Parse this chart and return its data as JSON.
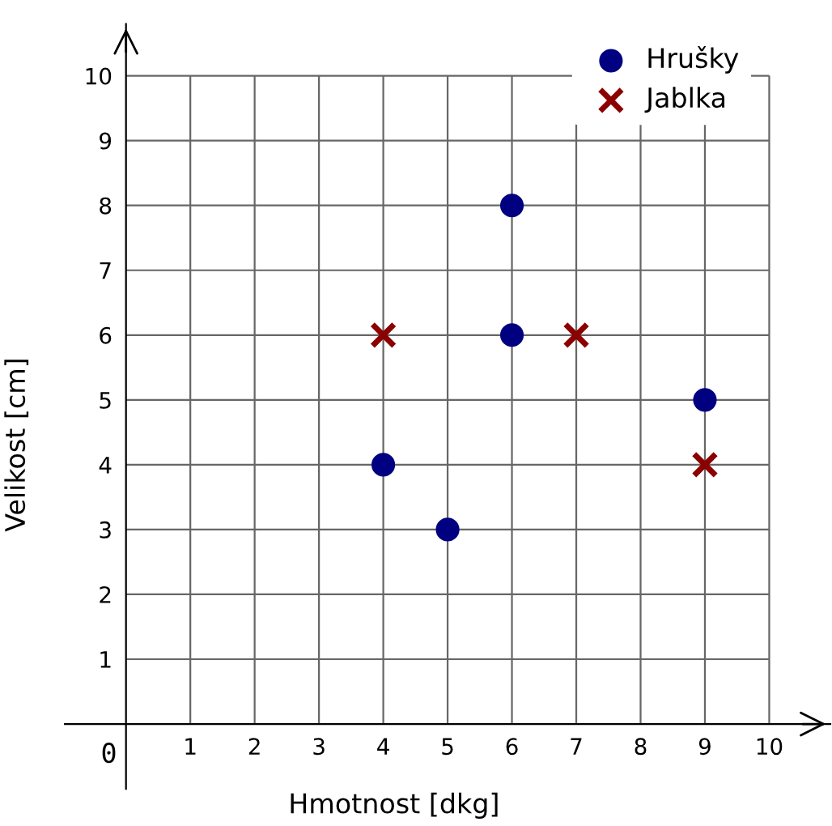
{
  "chart_data": {
    "type": "scatter",
    "xlabel": "Hmotnost [dkg]",
    "ylabel": "Velikost [cm]",
    "xlim": [
      -0.95,
      10.95
    ],
    "ylim": [
      -1.0,
      10.8
    ],
    "annotations": [
      "0"
    ],
    "xticks": [
      1,
      2,
      3,
      4,
      5,
      6,
      7,
      8,
      9,
      10
    ],
    "yticks": [
      1,
      2,
      3,
      4,
      5,
      6,
      7,
      8,
      9,
      10
    ],
    "grid": true,
    "legend": "top right",
    "series": [
      {
        "name": "Hrušky",
        "color": "#000080",
        "marker": "circle",
        "x": [
          4,
          5,
          6,
          6,
          9
        ],
        "values": [
          4,
          3,
          6,
          8,
          5
        ]
      },
      {
        "name": "Jablka",
        "color": "#8b0000",
        "marker": "cross",
        "x": [
          4,
          7,
          9
        ],
        "values": [
          6,
          6,
          4
        ]
      }
    ]
  }
}
